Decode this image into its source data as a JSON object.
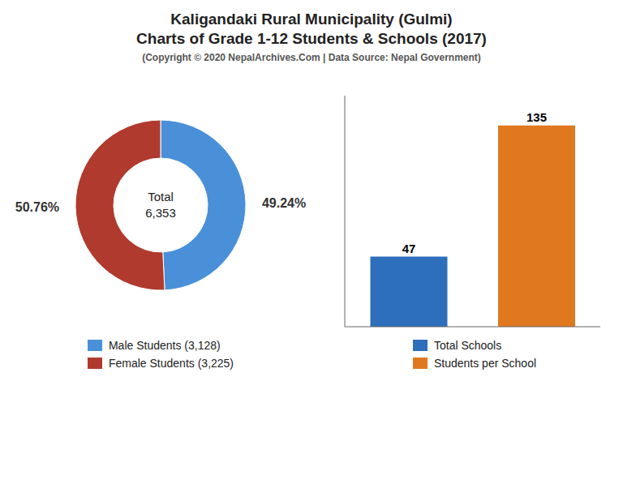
{
  "chart_data": [
    {
      "type": "pie",
      "title": "Kaligandaki Rural Municipality (Gulmi)\nCharts of Grade 1-12 Students & Schools (2017)",
      "subtitle": "(Copyright © 2020 NepalArchives.Com | Data Source: Nepal Government)",
      "categories": [
        "Male Students (3,128)",
        "Female Students (3,225)"
      ],
      "values": [
        49.24,
        50.76
      ],
      "value_labels": [
        "49.24%",
        "50.76%"
      ],
      "data_labels": true,
      "colors": [
        "#4a90d9",
        "#b03a2e"
      ],
      "annotations": [
        "Total",
        "6,353"
      ],
      "legend": "bottom"
    },
    {
      "type": "bar",
      "categories": [
        "Total Schools",
        "Students per School"
      ],
      "values": [
        47,
        135
      ],
      "colors": [
        "#2e6fbb",
        "#e07820"
      ],
      "ylim": [
        0,
        155
      ],
      "data_labels": true,
      "tick_labels": false,
      "grid": false,
      "legend": "bottom"
    }
  ]
}
